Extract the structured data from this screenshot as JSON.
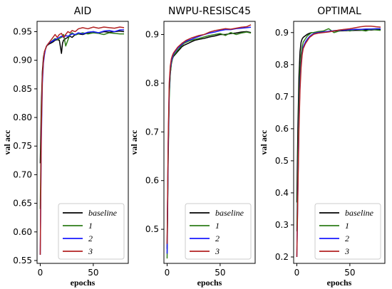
{
  "chart_data": [
    {
      "type": "line",
      "title": "AID",
      "xlabel": "epochs",
      "ylabel": "val acc",
      "xlim": [
        -3,
        83
      ],
      "ylim": [
        0.545,
        0.968
      ],
      "xticks": [
        0,
        50
      ],
      "yticks": [
        0.55,
        0.6,
        0.65,
        0.7,
        0.75,
        0.8,
        0.85,
        0.9,
        0.95
      ],
      "ytick_labels": [
        "0.55",
        "0.60",
        "0.65",
        "0.70",
        "0.75",
        "0.80",
        "0.85",
        "0.90",
        "0.95"
      ],
      "legend": "lower-right",
      "series": [
        {
          "name": "baseline",
          "color": "#000000",
          "x": [
            0,
            1,
            2,
            3,
            4,
            5,
            6,
            8,
            10,
            12,
            14,
            16,
            18,
            20,
            21,
            22,
            24,
            26,
            28,
            30,
            33,
            36,
            40,
            45,
            50,
            55,
            60,
            65,
            70,
            75,
            79
          ],
          "y": [
            0.72,
            0.82,
            0.88,
            0.905,
            0.915,
            0.92,
            0.925,
            0.928,
            0.93,
            0.932,
            0.935,
            0.936,
            0.935,
            0.912,
            0.93,
            0.935,
            0.938,
            0.94,
            0.942,
            0.94,
            0.945,
            0.946,
            0.945,
            0.948,
            0.95,
            0.948,
            0.95,
            0.949,
            0.95,
            0.951,
            0.95
          ]
        },
        {
          "name": "1",
          "color": "#2e7d1a",
          "x": [
            0,
            1,
            2,
            3,
            4,
            5,
            6,
            8,
            10,
            12,
            14,
            16,
            18,
            20,
            22,
            24,
            26,
            28,
            30,
            33,
            36,
            40,
            45,
            50,
            55,
            60,
            65,
            70,
            75,
            79
          ],
          "y": [
            0.64,
            0.8,
            0.87,
            0.9,
            0.915,
            0.92,
            0.925,
            0.93,
            0.932,
            0.935,
            0.938,
            0.936,
            0.938,
            0.94,
            0.945,
            0.925,
            0.935,
            0.945,
            0.948,
            0.944,
            0.946,
            0.948,
            0.946,
            0.948,
            0.947,
            0.945,
            0.948,
            0.947,
            0.946,
            0.946
          ]
        },
        {
          "name": "2",
          "color": "#1a1aff",
          "x": [
            0,
            1,
            2,
            3,
            4,
            5,
            6,
            8,
            10,
            12,
            14,
            16,
            18,
            20,
            22,
            24,
            26,
            28,
            30,
            33,
            36,
            40,
            45,
            50,
            55,
            60,
            65,
            70,
            75,
            79
          ],
          "y": [
            0.56,
            0.76,
            0.86,
            0.895,
            0.91,
            0.92,
            0.925,
            0.93,
            0.932,
            0.934,
            0.936,
            0.938,
            0.94,
            0.942,
            0.94,
            0.943,
            0.942,
            0.944,
            0.946,
            0.945,
            0.948,
            0.946,
            0.949,
            0.95,
            0.948,
            0.951,
            0.952,
            0.95,
            0.953,
            0.953
          ]
        },
        {
          "name": "3",
          "color": "#b22222",
          "x": [
            0,
            1,
            2,
            3,
            4,
            5,
            6,
            8,
            10,
            12,
            14,
            16,
            18,
            20,
            22,
            24,
            26,
            28,
            30,
            33,
            36,
            40,
            45,
            50,
            55,
            60,
            65,
            70,
            75,
            79
          ],
          "y": [
            0.56,
            0.78,
            0.87,
            0.9,
            0.915,
            0.92,
            0.925,
            0.93,
            0.935,
            0.94,
            0.945,
            0.94,
            0.945,
            0.947,
            0.94,
            0.945,
            0.95,
            0.948,
            0.952,
            0.95,
            0.955,
            0.957,
            0.955,
            0.958,
            0.956,
            0.958,
            0.957,
            0.956,
            0.958,
            0.957
          ]
        }
      ]
    },
    {
      "type": "line",
      "title": "NWPU-RESISC45",
      "xlabel": "epochs",
      "ylabel": "val acc",
      "xlim": [
        -3,
        83
      ],
      "ylim": [
        0.43,
        0.927
      ],
      "xticks": [
        0,
        50
      ],
      "yticks": [
        0.5,
        0.6,
        0.7,
        0.8,
        0.9
      ],
      "ytick_labels": [
        "0.5",
        "0.6",
        "0.7",
        "0.8",
        "0.9"
      ],
      "legend": "lower-right",
      "series": [
        {
          "name": "baseline",
          "color": "#000000",
          "x": [
            0,
            1,
            2,
            3,
            4,
            5,
            6,
            8,
            10,
            12,
            14,
            16,
            18,
            20,
            23,
            26,
            30,
            35,
            40,
            45,
            50,
            55,
            60,
            65,
            70,
            75,
            79
          ],
          "y": [
            0.46,
            0.66,
            0.78,
            0.82,
            0.84,
            0.85,
            0.855,
            0.86,
            0.865,
            0.87,
            0.875,
            0.878,
            0.88,
            0.882,
            0.885,
            0.888,
            0.89,
            0.892,
            0.895,
            0.897,
            0.9,
            0.9,
            0.902,
            0.903,
            0.905,
            0.906,
            0.904
          ]
        },
        {
          "name": "1",
          "color": "#2e7d1a",
          "x": [
            0,
            1,
            2,
            3,
            4,
            5,
            6,
            8,
            10,
            12,
            14,
            16,
            18,
            20,
            23,
            26,
            30,
            35,
            40,
            45,
            50,
            55,
            60,
            65,
            70,
            75,
            79
          ],
          "y": [
            0.44,
            0.64,
            0.77,
            0.82,
            0.84,
            0.85,
            0.857,
            0.862,
            0.868,
            0.873,
            0.878,
            0.882,
            0.884,
            0.886,
            0.888,
            0.89,
            0.892,
            0.895,
            0.898,
            0.9,
            0.902,
            0.898,
            0.904,
            0.9,
            0.903,
            0.905,
            0.903
          ]
        },
        {
          "name": "2",
          "color": "#1a1aff",
          "x": [
            0,
            1,
            2,
            3,
            4,
            5,
            6,
            8,
            10,
            12,
            14,
            16,
            18,
            20,
            23,
            26,
            30,
            35,
            40,
            45,
            50,
            55,
            60,
            65,
            70,
            75,
            79
          ],
          "y": [
            0.45,
            0.66,
            0.79,
            0.83,
            0.845,
            0.853,
            0.86,
            0.866,
            0.872,
            0.876,
            0.88,
            0.884,
            0.886,
            0.888,
            0.89,
            0.893,
            0.896,
            0.9,
            0.903,
            0.905,
            0.908,
            0.91,
            0.91,
            0.912,
            0.913,
            0.914,
            0.915
          ]
        },
        {
          "name": "3",
          "color": "#b22222",
          "x": [
            0,
            1,
            2,
            3,
            4,
            5,
            6,
            8,
            10,
            12,
            14,
            16,
            18,
            20,
            23,
            26,
            30,
            35,
            40,
            45,
            50,
            55,
            60,
            65,
            70,
            75,
            79
          ],
          "y": [
            0.47,
            0.68,
            0.8,
            0.835,
            0.85,
            0.857,
            0.862,
            0.868,
            0.874,
            0.878,
            0.882,
            0.885,
            0.888,
            0.89,
            0.893,
            0.895,
            0.898,
            0.9,
            0.905,
            0.908,
            0.91,
            0.912,
            0.911,
            0.913,
            0.915,
            0.916,
            0.92
          ]
        }
      ]
    },
    {
      "type": "line",
      "title": "OPTIMAL",
      "xlabel": "epochs",
      "ylabel": "val acc",
      "xlim": [
        -3,
        83
      ],
      "ylim": [
        0.18,
        0.935
      ],
      "xticks": [
        0,
        50
      ],
      "yticks": [
        0.2,
        0.3,
        0.4,
        0.5,
        0.6,
        0.7,
        0.8,
        0.9
      ],
      "ytick_labels": [
        "0.2",
        "0.3",
        "0.4",
        "0.5",
        "0.6",
        "0.7",
        "0.8",
        "0.9"
      ],
      "legend": "lower-right",
      "series": [
        {
          "name": "baseline",
          "color": "#000000",
          "x": [
            0,
            1,
            2,
            3,
            4,
            5,
            6,
            8,
            10,
            12,
            14,
            16,
            20,
            25,
            30,
            35,
            40,
            45,
            50,
            55,
            60,
            65,
            70,
            75,
            79
          ],
          "y": [
            0.37,
            0.6,
            0.76,
            0.84,
            0.87,
            0.88,
            0.885,
            0.89,
            0.895,
            0.898,
            0.9,
            0.9,
            0.902,
            0.902,
            0.903,
            0.905,
            0.905,
            0.906,
            0.906,
            0.907,
            0.907,
            0.908,
            0.908,
            0.909,
            0.909
          ]
        },
        {
          "name": "1",
          "color": "#2e7d1a",
          "x": [
            0,
            1,
            2,
            3,
            4,
            5,
            6,
            8,
            10,
            12,
            14,
            16,
            20,
            25,
            30,
            35,
            40,
            45,
            50,
            55,
            60,
            65,
            70,
            75,
            79
          ],
          "y": [
            0.28,
            0.5,
            0.68,
            0.78,
            0.83,
            0.855,
            0.87,
            0.88,
            0.89,
            0.895,
            0.9,
            0.9,
            0.903,
            0.905,
            0.912,
            0.9,
            0.905,
            0.91,
            0.905,
            0.91,
            0.908,
            0.905,
            0.91,
            0.908,
            0.907
          ]
        },
        {
          "name": "2",
          "color": "#1a1aff",
          "x": [
            0,
            1,
            2,
            3,
            4,
            5,
            6,
            8,
            10,
            12,
            14,
            16,
            20,
            25,
            30,
            35,
            40,
            45,
            50,
            55,
            60,
            65,
            70,
            75,
            79
          ],
          "y": [
            0.2,
            0.42,
            0.62,
            0.74,
            0.8,
            0.835,
            0.855,
            0.87,
            0.88,
            0.888,
            0.893,
            0.897,
            0.9,
            0.902,
            0.904,
            0.906,
            0.907,
            0.908,
            0.909,
            0.91,
            0.91,
            0.911,
            0.911,
            0.912,
            0.912
          ]
        },
        {
          "name": "3",
          "color": "#b22222",
          "x": [
            0,
            1,
            2,
            3,
            4,
            5,
            6,
            8,
            10,
            12,
            14,
            16,
            20,
            25,
            30,
            35,
            40,
            45,
            50,
            55,
            60,
            65,
            70,
            75,
            79
          ],
          "y": [
            0.2,
            0.4,
            0.6,
            0.72,
            0.79,
            0.83,
            0.85,
            0.865,
            0.875,
            0.885,
            0.89,
            0.895,
            0.898,
            0.9,
            0.902,
            0.905,
            0.908,
            0.91,
            0.912,
            0.915,
            0.918,
            0.92,
            0.92,
            0.918,
            0.917
          ]
        }
      ]
    }
  ]
}
